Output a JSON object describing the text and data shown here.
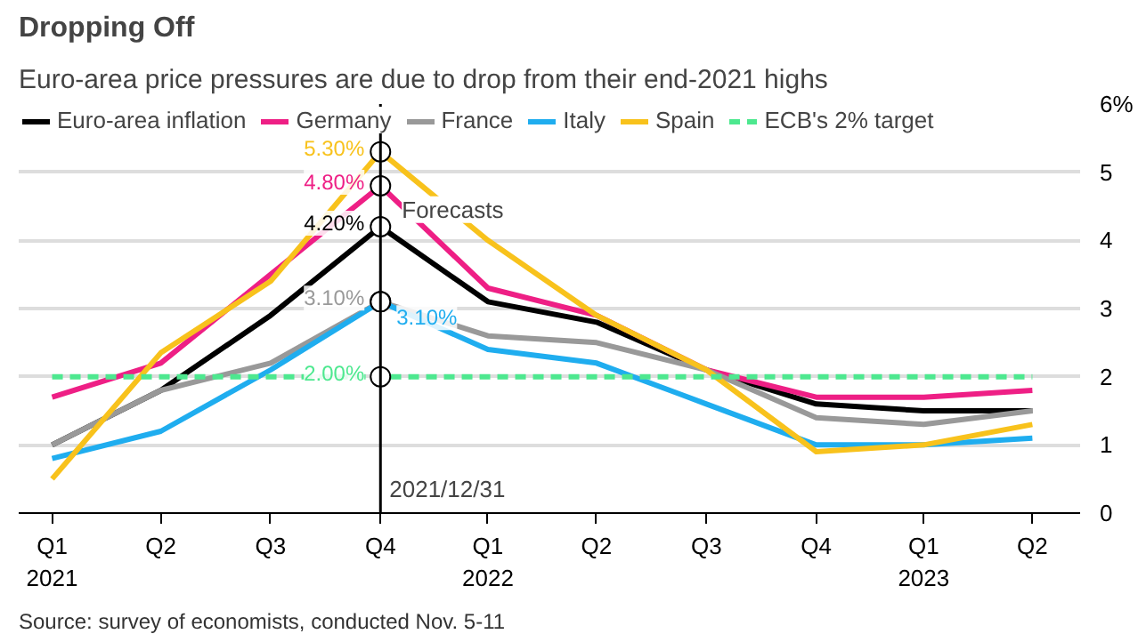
{
  "chart_data": {
    "type": "line",
    "title": "Dropping Off",
    "subtitle": "Euro-area price pressures are due to drop from their end-2021 highs",
    "x": [
      "2021-03-31",
      "2021-06-30",
      "2021-09-30",
      "2021-12-31",
      "2022-03-31",
      "2022-06-30",
      "2022-09-30",
      "2022-12-31",
      "2023-03-31",
      "2023-06-30"
    ],
    "series": [
      {
        "name": "Euro-area inflation",
        "color": "#000000",
        "values": [
          1.0,
          1.8,
          2.9,
          4.2,
          3.1,
          2.8,
          2.1,
          1.6,
          1.5,
          1.5
        ],
        "value_labels": [
          null,
          null,
          null,
          "4.20%",
          null,
          null,
          null,
          null,
          null,
          null
        ]
      },
      {
        "name": "Germany",
        "color": "#ee1f85",
        "values": [
          1.7,
          2.2,
          3.5,
          4.8,
          3.3,
          2.9,
          2.1,
          1.7,
          1.7,
          1.8
        ],
        "value_labels": [
          null,
          null,
          null,
          "4.80%",
          null,
          null,
          null,
          null,
          null,
          null
        ]
      },
      {
        "name": "France",
        "color": "#999999",
        "values": [
          1.0,
          1.8,
          2.2,
          3.1,
          2.6,
          2.5,
          2.1,
          1.4,
          1.3,
          1.5
        ],
        "value_labels": [
          null,
          null,
          null,
          "3.10%",
          null,
          null,
          null,
          null,
          null,
          null
        ]
      },
      {
        "name": "Italy",
        "color": "#1fadef",
        "values": [
          0.8,
          1.2,
          2.1,
          3.1,
          2.4,
          2.2,
          1.6,
          1.0,
          1.0,
          1.1
        ],
        "value_labels": [
          null,
          null,
          null,
          "3.10%",
          null,
          null,
          null,
          null,
          null,
          null
        ]
      },
      {
        "name": "Spain",
        "color": "#f8c21c",
        "values": [
          0.5,
          2.35,
          3.4,
          5.3,
          4.0,
          2.9,
          2.1,
          0.9,
          1.0,
          1.3
        ],
        "value_labels": [
          null,
          null,
          null,
          "5.30%",
          null,
          null,
          null,
          null,
          null,
          null
        ]
      },
      {
        "name": "ECB's 2% target",
        "color": "#4de88f",
        "line_style": "dashed",
        "values": [
          2.0,
          2.0,
          2.0,
          2.0,
          2.0,
          2.0,
          2.0,
          2.0,
          2.0,
          2.0
        ],
        "value_labels": [
          null,
          null,
          null,
          "2.00%",
          null,
          null,
          null,
          null,
          null,
          null
        ]
      }
    ],
    "xlim": [
      "2021-03-03",
      "2023-08-09"
    ],
    "xticks": [
      {
        "value": "2021-03-31",
        "label": "Q1\n2021"
      },
      {
        "value": "2021-06-30",
        "label": "Q2"
      },
      {
        "value": "2021-09-30",
        "label": "Q3"
      },
      {
        "value": "2021-12-31",
        "label": "Q4"
      },
      {
        "value": "2022-03-31",
        "label": "Q1\n2022"
      },
      {
        "value": "2022-06-30",
        "label": "Q2"
      },
      {
        "value": "2022-09-30",
        "label": "Q3"
      },
      {
        "value": "2022-12-31",
        "label": "Q4"
      },
      {
        "value": "2023-03-31",
        "label": "Q1\n2023"
      },
      {
        "value": "2023-06-30",
        "label": "Q2"
      }
    ],
    "ylim": [
      0,
      6
    ],
    "yticks": [
      0,
      1,
      2,
      3,
      4,
      5,
      {
        "value": 6,
        "label": "6%"
      }
    ],
    "grid": "y",
    "legend": "top",
    "line_style": "solid",
    "ref_lines": [
      {
        "axis": "x",
        "value": "2021-12-31",
        "label": "Forecasts",
        "color": "#000000"
      }
    ],
    "annotations": [
      {
        "text": "2021/12/31",
        "x": "2021-12-31"
      },
      "Source: survey of economists, conducted Nov. 5-11"
    ]
  }
}
